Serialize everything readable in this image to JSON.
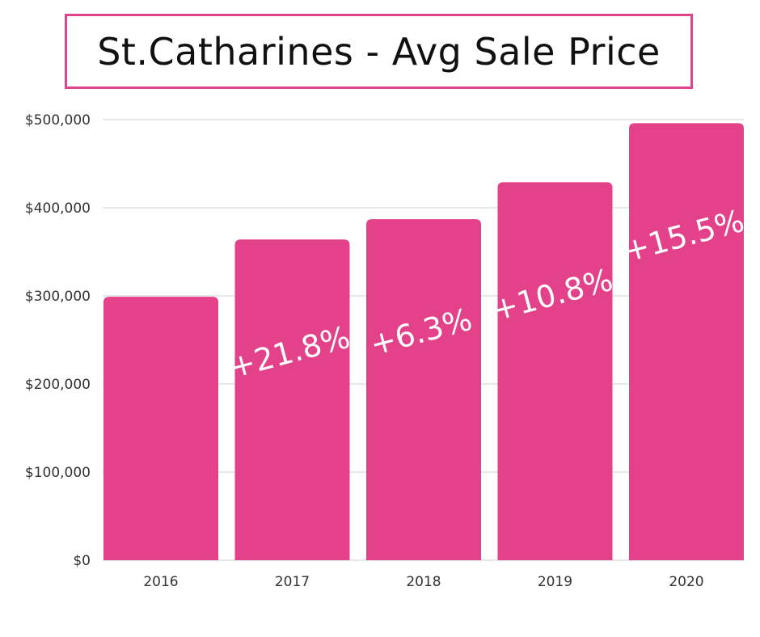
{
  "header": {
    "title": "St.Catharines - Avg Sale Price"
  },
  "colors": {
    "bar": "#e3418a",
    "title_border": "#e0448a",
    "grid": "#d2d2d2",
    "label_text": "#ffffff"
  },
  "chart_data": {
    "type": "bar",
    "title": "St.Catharines - Avg Sale Price",
    "xlabel": "",
    "ylabel": "",
    "categories": [
      "2016",
      "2017",
      "2018",
      "2019",
      "2020"
    ],
    "values": [
      299000,
      364000,
      387000,
      429000,
      496000
    ],
    "data_labels": [
      "",
      "+21.8%",
      "+6.3%",
      "+10.8%",
      "+15.5%"
    ],
    "ylim": [
      0,
      500000
    ],
    "yticks": [
      0,
      100000,
      200000,
      300000,
      400000,
      500000
    ],
    "ytick_labels": [
      "$0",
      "$100,000",
      "$200,000",
      "$300,000",
      "$400,000",
      "$500,000"
    ],
    "grid": true,
    "legend": "none"
  }
}
